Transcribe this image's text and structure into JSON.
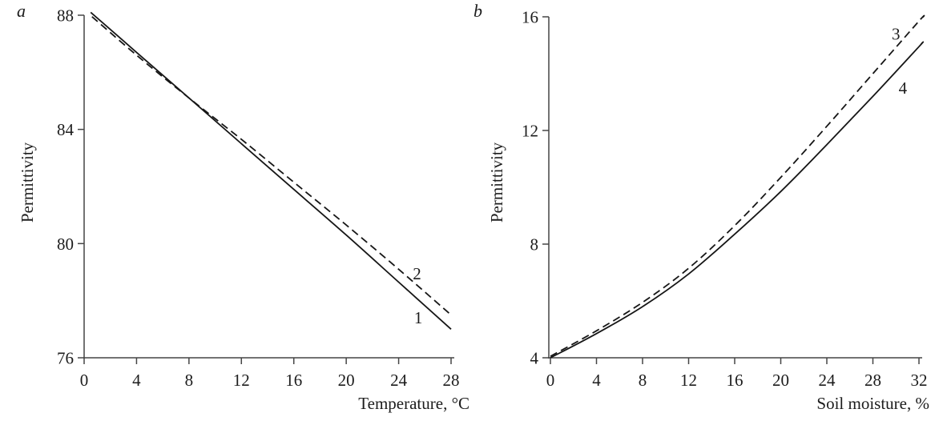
{
  "figure": {
    "background_color": "#ffffff",
    "axis_color": "#454545",
    "line_color": "#161616",
    "text_color": "#1c1c1c",
    "tick_font_size": 21,
    "series_label_font_size": 21
  },
  "chart_data": [
    {
      "type": "line",
      "panel_label": "a",
      "xlabel": "Temperature, °C",
      "ylabel": "Permittivity",
      "xlim": [
        0,
        28
      ],
      "ylim": [
        76,
        88
      ],
      "x_ticks": [
        0,
        4,
        8,
        12,
        16,
        20,
        24,
        28
      ],
      "y_ticks": [
        76,
        80,
        84,
        88
      ],
      "grid": false,
      "legend": "inline numeric labels next to curves",
      "series": [
        {
          "name": "1",
          "line_style": "solid",
          "color": "#161616",
          "x": [
            0.5,
            4,
            8,
            12,
            16,
            20,
            24,
            28
          ],
          "y": [
            88.1,
            86.7,
            85.1,
            83.5,
            81.9,
            80.3,
            78.65,
            77.0
          ],
          "label": "1",
          "label_at": [
            25.5,
            77.4
          ]
        },
        {
          "name": "2",
          "line_style": "dashed",
          "color": "#161616",
          "x": [
            0.6,
            4,
            8,
            12,
            16,
            20,
            24,
            28
          ],
          "y": [
            87.95,
            86.6,
            85.1,
            83.65,
            82.15,
            80.65,
            79.1,
            77.5
          ],
          "label": "2",
          "label_at": [
            25.4,
            78.95
          ]
        }
      ]
    },
    {
      "type": "line",
      "panel_label": "b",
      "xlabel": "Soil moisture, %",
      "ylabel": "Permittivity",
      "xlim": [
        0,
        32
      ],
      "ylim": [
        4,
        16
      ],
      "x_ticks": [
        0,
        4,
        8,
        12,
        16,
        20,
        24,
        28,
        32
      ],
      "y_ticks": [
        4,
        8,
        12,
        16
      ],
      "grid": false,
      "legend": "inline numeric labels next to curves",
      "series": [
        {
          "name": "3",
          "line_style": "dashed",
          "color": "#161616",
          "x": [
            0,
            4,
            8,
            12,
            16,
            20,
            24,
            28,
            32,
            32.4
          ],
          "y": [
            4.05,
            4.95,
            5.95,
            7.15,
            8.65,
            10.35,
            12.15,
            14.0,
            15.85,
            16.0
          ],
          "label": "3",
          "label_at": [
            30.0,
            15.4
          ]
        },
        {
          "name": "4",
          "line_style": "solid",
          "color": "#161616",
          "x": [
            0,
            4,
            8,
            12,
            16,
            20,
            24,
            28,
            32,
            32.2
          ],
          "y": [
            4.0,
            4.85,
            5.8,
            6.95,
            8.35,
            9.85,
            11.5,
            13.2,
            14.95,
            15.05
          ],
          "label": "4",
          "label_at": [
            30.6,
            13.5
          ]
        }
      ]
    }
  ]
}
